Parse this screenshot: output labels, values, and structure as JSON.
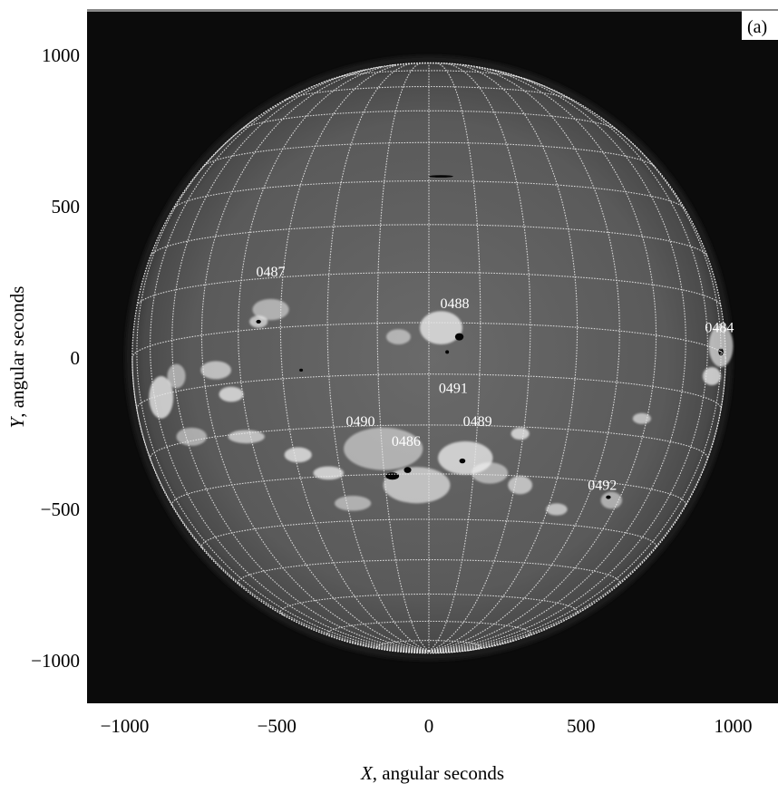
{
  "panel_label": "(a)",
  "x_axis": {
    "title_var": "X",
    "title_rest": ", angular seconds",
    "ticks": [
      -1000,
      -500,
      0,
      500,
      1000
    ],
    "tick_labels": [
      "−1000",
      "−500",
      "0",
      "500",
      "1000"
    ],
    "range": [
      -1135,
      1115
    ]
  },
  "y_axis": {
    "title_var": "Y",
    "title_rest": ", angular seconds",
    "ticks": [
      1000,
      500,
      0,
      -500,
      -1000
    ],
    "tick_labels": [
      "1000",
      "500",
      "0",
      "−500",
      "−1000"
    ],
    "range": [
      -1135,
      1135
    ]
  },
  "disk_radius_arcsec": 975,
  "active_regions": [
    {
      "label": "0487",
      "x": -520,
      "y": 270
    },
    {
      "label": "0488",
      "x": 85,
      "y": 165
    },
    {
      "label": "0484",
      "x": 955,
      "y": 85
    },
    {
      "label": "0491",
      "x": 80,
      "y": -115
    },
    {
      "label": "0490",
      "x": -225,
      "y": -225
    },
    {
      "label": "0489",
      "x": 160,
      "y": -225
    },
    {
      "label": "0486",
      "x": -75,
      "y": -290
    },
    {
      "label": "0492",
      "x": 570,
      "y": -435
    }
  ],
  "colors": {
    "background": "#0b0b0b",
    "disk": "#5e5e5e",
    "grid": "#e6e6e6",
    "plage": "#f2f2f2",
    "sunspot": "#050505"
  }
}
